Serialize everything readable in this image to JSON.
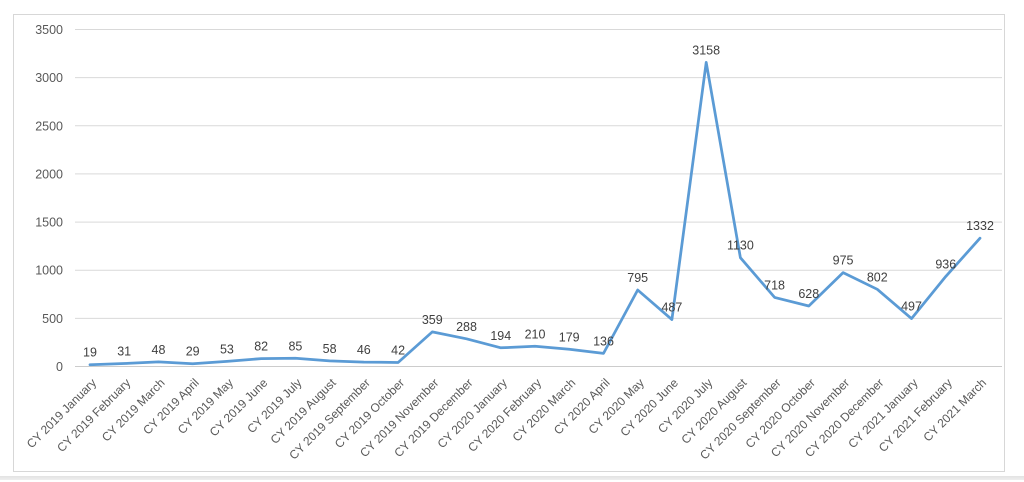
{
  "chart_data": {
    "type": "line",
    "title": "",
    "xlabel": "",
    "ylabel": "",
    "categories": [
      "CY 2019 January",
      "CY 2019 February",
      "CY 2019 March",
      "CY 2019 April",
      "CY 2019 May",
      "CY 2019 June",
      "CY 2019 July",
      "CY 2019 August",
      "CY 2019 September",
      "CY 2019 October",
      "CY 2019 November",
      "CY 2019 December",
      "CY 2020 January",
      "CY 2020 February",
      "CY 2020 March",
      "CY 2020 April",
      "CY 2020 May",
      "CY 2020 June",
      "CY 2020 July",
      "CY 2020 August",
      "CY 2020 September",
      "CY 2020 October",
      "CY 2020 November",
      "CY 2020 December",
      "CY 2021 January",
      "CY 2021 February",
      "CY 2021 March"
    ],
    "values": [
      19,
      31,
      48,
      29,
      53,
      82,
      85,
      58,
      46,
      42,
      359,
      288,
      194,
      210,
      179,
      136,
      795,
      487,
      3158,
      1130,
      718,
      628,
      975,
      802,
      497,
      936,
      1332
    ],
    "data_labels": [
      "19",
      "31",
      "48",
      "29",
      "53",
      "82",
      "85",
      "58",
      "46",
      "42",
      "359",
      "288",
      "194",
      "210",
      "179",
      "136",
      "795",
      "487",
      "3158",
      "1130",
      "718",
      "628",
      "975",
      "802",
      "497",
      "936",
      "1332"
    ],
    "ylim": [
      0,
      3500
    ],
    "yticks": [
      0,
      500,
      1000,
      1500,
      2000,
      2500,
      3000,
      3500
    ],
    "ytick_labels": [
      "0",
      "500",
      "1000",
      "1500",
      "2000",
      "2500",
      "3000",
      "3500"
    ],
    "grid": true,
    "legend": false,
    "legend_position": "none",
    "line_color": "#5b9bd5",
    "gridline_color": "#d9d9d9",
    "zero_axis_color": "#cccccc",
    "axis_label_color": "#595959",
    "data_label_color": "#404040"
  }
}
